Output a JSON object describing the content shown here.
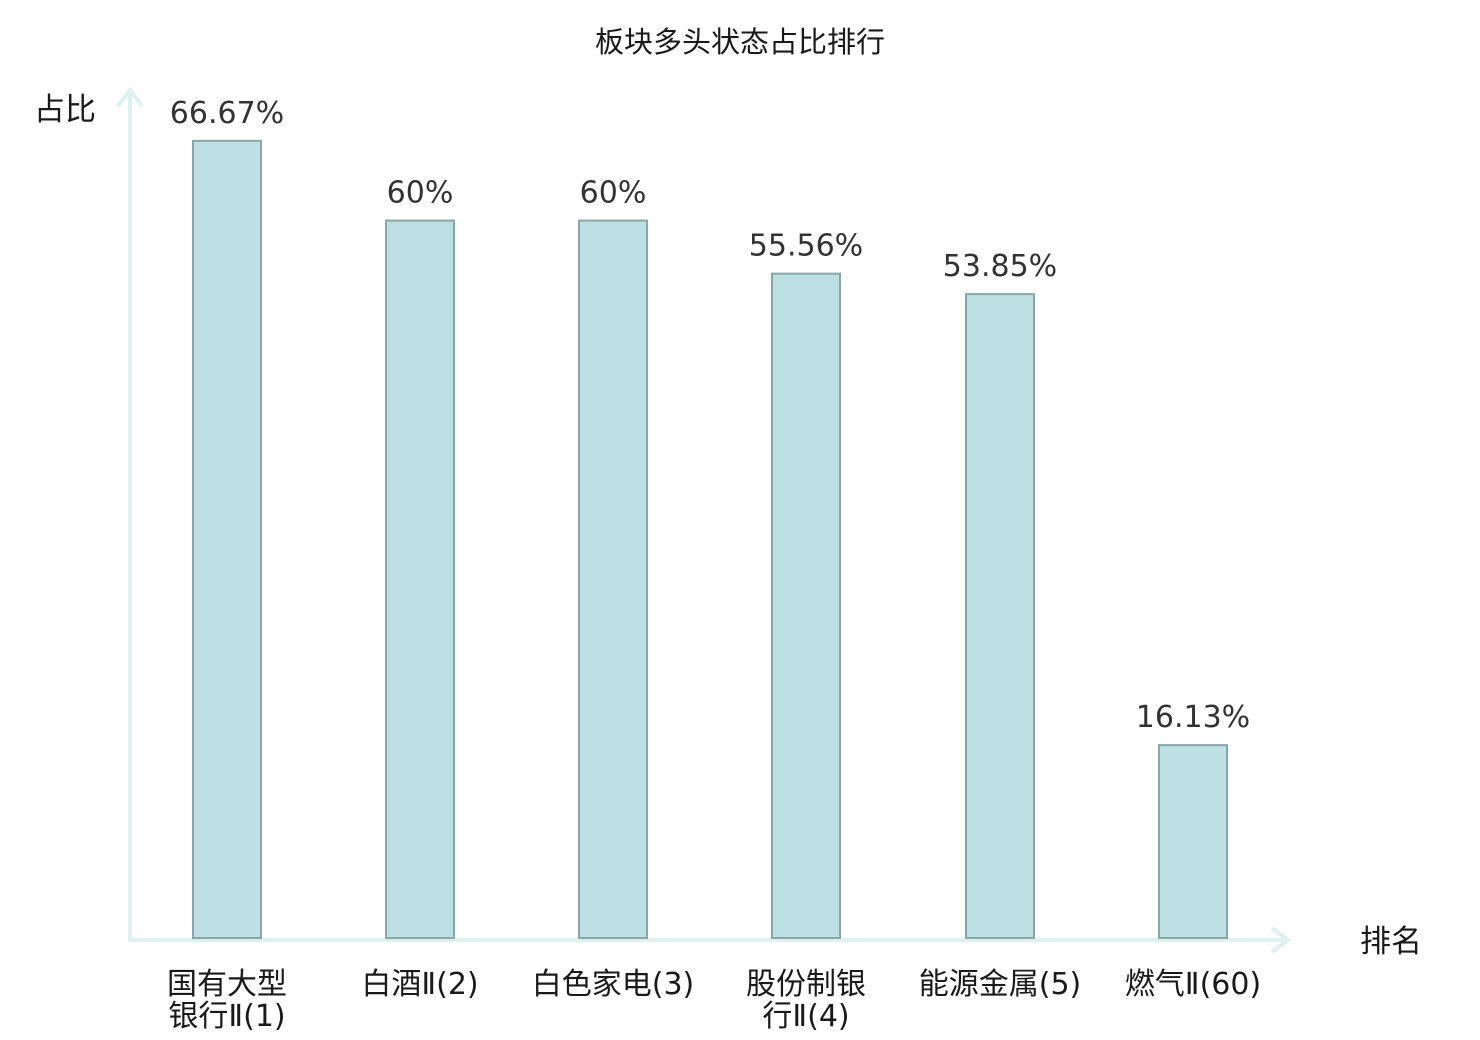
{
  "chart_data": {
    "type": "bar",
    "title": "板块多头状态占比排行",
    "ylabel": "占比",
    "xlabel": "排名",
    "ylim": [
      0,
      70
    ],
    "grid": false,
    "categories": [
      [
        "国有大型",
        "银行Ⅱ(1)"
      ],
      [
        "白酒Ⅱ(2)"
      ],
      [
        "白色家电(3)"
      ],
      [
        "股份制银",
        "行Ⅱ(4)"
      ],
      [
        "能源金属(5)"
      ],
      [
        "燃气Ⅱ(60)"
      ]
    ],
    "values": [
      66.67,
      60,
      60,
      55.56,
      53.85,
      16.13
    ],
    "value_labels": [
      "66.67%",
      "60%",
      "60%",
      "55.56%",
      "53.85%",
      "16.13%"
    ],
    "highlight_index": 5,
    "colors": {
      "bar_fill": "#bce0e3",
      "bar_stroke": "#8aa6a8",
      "axis": "#dff1ee",
      "highlight_text": "#e02020",
      "text": "#1a1a1a"
    }
  }
}
